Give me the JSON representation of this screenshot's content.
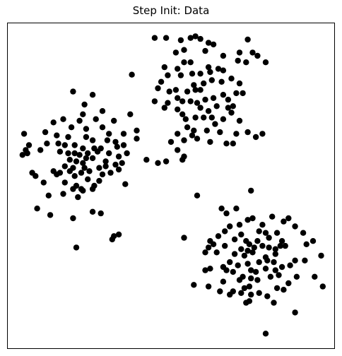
{
  "chart_data": {
    "type": "scatter",
    "title": "Step Init: Data",
    "xlabel": "",
    "ylabel": "",
    "xlim": [
      0,
      100
    ],
    "ylim": [
      0,
      100
    ],
    "grid": false,
    "legend": "none",
    "point_color": "#000000",
    "series": [
      {
        "points": [
          [
            45.0,
            95.5
          ],
          [
            48.5,
            95.5
          ],
          [
            53.0,
            94.8
          ],
          [
            56.0,
            95.5
          ],
          [
            57.5,
            96.0
          ],
          [
            59.0,
            95.2
          ],
          [
            61.5,
            94.0
          ],
          [
            63.0,
            93.5
          ],
          [
            73.5,
            95.0
          ],
          [
            51.5,
            91.0
          ],
          [
            54.0,
            91.8
          ],
          [
            60.5,
            91.5
          ],
          [
            66.0,
            90.0
          ],
          [
            71.0,
            91.0
          ],
          [
            75.0,
            91.0
          ],
          [
            76.5,
            90.0
          ],
          [
            79.0,
            88.0
          ],
          [
            54.0,
            88.0
          ],
          [
            56.0,
            88.0
          ],
          [
            52.0,
            86.0
          ],
          [
            48.0,
            86.5
          ],
          [
            61.5,
            86.5
          ],
          [
            70.5,
            88.5
          ],
          [
            73.0,
            88.0
          ],
          [
            38.0,
            84.2
          ],
          [
            49.0,
            84.0
          ],
          [
            53.0,
            84.0
          ],
          [
            56.5,
            84.5
          ],
          [
            59.0,
            84.5
          ],
          [
            62.0,
            85.0
          ],
          [
            64.5,
            86.0
          ],
          [
            66.0,
            85.5
          ],
          [
            60.0,
            81.5
          ],
          [
            47.0,
            82.0
          ],
          [
            57.0,
            81.0
          ],
          [
            62.5,
            82.5
          ],
          [
            65.5,
            82.0
          ],
          [
            68.5,
            83.0
          ],
          [
            71.0,
            81.5
          ],
          [
            46.0,
            80.0
          ],
          [
            49.5,
            79.0
          ],
          [
            51.5,
            79.5
          ],
          [
            55.0,
            79.0
          ],
          [
            57.5,
            79.5
          ],
          [
            59.0,
            79.5
          ],
          [
            45.0,
            76.0
          ],
          [
            49.0,
            75.5
          ],
          [
            52.0,
            77.0
          ],
          [
            53.5,
            76.0
          ],
          [
            56.0,
            76.0
          ],
          [
            58.0,
            75.5
          ],
          [
            60.5,
            76.5
          ],
          [
            63.0,
            77.0
          ],
          [
            66.0,
            78.0
          ],
          [
            67.5,
            76.5
          ],
          [
            70.0,
            78.5
          ],
          [
            72.0,
            78.5
          ],
          [
            48.0,
            74.0
          ],
          [
            52.0,
            73.5
          ],
          [
            53.5,
            72.0
          ],
          [
            59.0,
            74.0
          ],
          [
            61.5,
            73.0
          ],
          [
            64.0,
            74.5
          ],
          [
            67.5,
            74.0
          ],
          [
            69.0,
            74.5
          ],
          [
            54.5,
            70.5
          ],
          [
            57.5,
            71.0
          ],
          [
            60.0,
            71.0
          ],
          [
            62.5,
            71.0
          ],
          [
            66.0,
            70.5
          ],
          [
            68.5,
            72.5
          ],
          [
            71.0,
            70.0
          ],
          [
            55.0,
            68.0
          ],
          [
            57.0,
            67.0
          ],
          [
            63.5,
            69.0
          ],
          [
            65.0,
            66.5
          ],
          [
            52.0,
            66.0
          ],
          [
            56.5,
            65.5
          ],
          [
            61.0,
            67.0
          ],
          [
            70.0,
            66.0
          ],
          [
            78.0,
            66.0
          ],
          [
            73.5,
            66.5
          ],
          [
            50.0,
            63.5
          ],
          [
            54.0,
            64.0
          ],
          [
            58.0,
            64.5
          ],
          [
            62.0,
            63.5
          ],
          [
            69.0,
            63.0
          ],
          [
            76.0,
            65.0
          ],
          [
            52.0,
            61.0
          ],
          [
            54.0,
            59.0
          ],
          [
            67.0,
            63.0
          ],
          [
            46.0,
            57.0
          ],
          [
            53.5,
            58.0
          ]
        ]
      },
      {
        "points": [
          [
            20.0,
            79.0
          ],
          [
            26.0,
            78.0
          ],
          [
            23.5,
            75.0
          ],
          [
            23.0,
            72.0
          ],
          [
            29.0,
            73.0
          ],
          [
            37.5,
            72.0
          ],
          [
            17.0,
            70.5
          ],
          [
            22.0,
            70.0
          ],
          [
            27.0,
            70.5
          ],
          [
            32.5,
            70.0
          ],
          [
            31.0,
            66.0
          ],
          [
            14.0,
            69.5
          ],
          [
            19.5,
            68.0
          ],
          [
            24.0,
            67.5
          ],
          [
            29.0,
            68.0
          ],
          [
            35.5,
            66.0
          ],
          [
            39.5,
            67.0
          ],
          [
            5.0,
            66.0
          ],
          [
            11.5,
            66.5
          ],
          [
            15.0,
            65.5
          ],
          [
            18.5,
            65.0
          ],
          [
            24.0,
            65.0
          ],
          [
            26.0,
            64.0
          ],
          [
            30.5,
            64.0
          ],
          [
            33.0,
            63.5
          ],
          [
            39.5,
            64.5
          ],
          [
            6.5,
            62.5
          ],
          [
            12.0,
            63.0
          ],
          [
            15.5,
            63.0
          ],
          [
            17.5,
            62.5
          ],
          [
            20.5,
            62.5
          ],
          [
            23.0,
            61.5
          ],
          [
            26.5,
            61.5
          ],
          [
            28.5,
            61.5
          ],
          [
            33.5,
            62.0
          ],
          [
            35.5,
            62.5
          ],
          [
            5.5,
            61.0
          ],
          [
            10.0,
            61.0
          ],
          [
            16.0,
            60.5
          ],
          [
            18.5,
            60.0
          ],
          [
            20.5,
            60.0
          ],
          [
            22.0,
            59.5
          ],
          [
            24.5,
            60.0
          ],
          [
            26.0,
            58.5
          ],
          [
            27.5,
            60.5
          ],
          [
            31.0,
            60.0
          ],
          [
            34.0,
            59.0
          ],
          [
            36.5,
            60.0
          ],
          [
            19.0,
            58.0
          ],
          [
            21.0,
            57.5
          ],
          [
            23.0,
            57.0
          ],
          [
            24.0,
            58.5
          ],
          [
            30.0,
            57.5
          ],
          [
            33.0,
            56.5
          ],
          [
            35.0,
            57.0
          ],
          [
            42.5,
            58.0
          ],
          [
            48.5,
            57.5
          ],
          [
            4.5,
            59.5
          ],
          [
            6.0,
            60.0
          ],
          [
            17.5,
            56.0
          ],
          [
            20.0,
            55.5
          ],
          [
            23.5,
            55.5
          ],
          [
            28.0,
            55.5
          ],
          [
            30.0,
            56.0
          ],
          [
            7.5,
            54.0
          ],
          [
            14.0,
            54.5
          ],
          [
            16.0,
            54.0
          ],
          [
            19.0,
            54.5
          ],
          [
            22.5,
            54.0
          ],
          [
            25.0,
            54.5
          ],
          [
            29.0,
            53.5
          ],
          [
            31.5,
            54.0
          ],
          [
            34.0,
            55.0
          ],
          [
            8.5,
            53.0
          ],
          [
            15.0,
            53.5
          ],
          [
            20.5,
            53.0
          ],
          [
            24.5,
            52.0
          ],
          [
            11.0,
            51.0
          ],
          [
            17.5,
            51.0
          ],
          [
            21.0,
            50.0
          ],
          [
            22.5,
            49.0
          ],
          [
            26.5,
            50.0
          ],
          [
            28.0,
            51.5
          ],
          [
            36.0,
            50.5
          ],
          [
            20.0,
            49.0
          ],
          [
            23.0,
            48.5
          ],
          [
            26.0,
            49.0
          ],
          [
            12.5,
            47.0
          ],
          [
            17.0,
            47.5
          ],
          [
            21.5,
            46.5
          ],
          [
            9.0,
            43.0
          ],
          [
            26.0,
            42.0
          ],
          [
            28.5,
            41.5
          ],
          [
            13.0,
            41.0
          ],
          [
            20.0,
            40.0
          ],
          [
            32.5,
            34.5
          ],
          [
            34.0,
            35.0
          ],
          [
            32.0,
            33.5
          ],
          [
            21.0,
            31.0
          ]
        ]
      },
      {
        "points": [
          [
            58.0,
            47.0
          ],
          [
            74.5,
            48.5
          ],
          [
            65.5,
            43.0
          ],
          [
            67.0,
            41.5
          ],
          [
            70.0,
            43.0
          ],
          [
            71.0,
            38.0
          ],
          [
            73.5,
            39.5
          ],
          [
            75.0,
            40.0
          ],
          [
            78.0,
            38.0
          ],
          [
            81.0,
            40.5
          ],
          [
            84.5,
            39.0
          ],
          [
            86.0,
            40.0
          ],
          [
            66.5,
            36.0
          ],
          [
            68.0,
            37.5
          ],
          [
            77.0,
            36.0
          ],
          [
            79.0,
            35.5
          ],
          [
            82.5,
            35.5
          ],
          [
            88.0,
            37.5
          ],
          [
            90.5,
            35.5
          ],
          [
            54.0,
            34.0
          ],
          [
            62.0,
            33.0
          ],
          [
            64.5,
            34.5
          ],
          [
            69.5,
            33.5
          ],
          [
            71.5,
            35.0
          ],
          [
            73.0,
            33.0
          ],
          [
            74.0,
            32.0
          ],
          [
            76.5,
            33.0
          ],
          [
            80.0,
            34.0
          ],
          [
            84.0,
            33.0
          ],
          [
            91.5,
            32.0
          ],
          [
            93.5,
            33.0
          ],
          [
            61.5,
            31.0
          ],
          [
            63.0,
            32.0
          ],
          [
            66.5,
            31.5
          ],
          [
            71.5,
            30.5
          ],
          [
            73.5,
            30.0
          ],
          [
            75.5,
            31.0
          ],
          [
            78.0,
            31.5
          ],
          [
            80.0,
            31.0
          ],
          [
            82.0,
            30.5
          ],
          [
            83.5,
            31.5
          ],
          [
            85.0,
            31.5
          ],
          [
            60.5,
            29.5
          ],
          [
            64.0,
            29.5
          ],
          [
            69.5,
            29.0
          ],
          [
            72.5,
            28.5
          ],
          [
            75.0,
            29.5
          ],
          [
            79.0,
            28.0
          ],
          [
            82.0,
            29.0
          ],
          [
            96.0,
            28.5
          ],
          [
            68.0,
            26.5
          ],
          [
            73.5,
            26.0
          ],
          [
            77.0,
            26.5
          ],
          [
            79.5,
            27.0
          ],
          [
            81.5,
            26.5
          ],
          [
            88.0,
            27.0
          ],
          [
            91.0,
            27.0
          ],
          [
            66.0,
            25.0
          ],
          [
            70.5,
            25.5
          ],
          [
            74.5,
            24.0
          ],
          [
            79.0,
            24.5
          ],
          [
            82.0,
            24.0
          ],
          [
            84.0,
            25.0
          ],
          [
            86.5,
            25.5
          ],
          [
            60.5,
            24.0
          ],
          [
            62.0,
            24.5
          ],
          [
            67.0,
            24.0
          ],
          [
            69.0,
            23.5
          ],
          [
            76.0,
            23.5
          ],
          [
            72.0,
            22.0
          ],
          [
            74.5,
            21.5
          ],
          [
            80.5,
            22.0
          ],
          [
            83.0,
            22.5
          ],
          [
            88.5,
            22.0
          ],
          [
            94.0,
            22.0
          ],
          [
            66.0,
            20.5
          ],
          [
            71.0,
            21.0
          ],
          [
            76.5,
            21.0
          ],
          [
            86.0,
            20.0
          ],
          [
            72.5,
            18.5
          ],
          [
            74.0,
            19.0
          ],
          [
            57.0,
            19.5
          ],
          [
            61.5,
            19.0
          ],
          [
            82.5,
            18.5
          ],
          [
            69.0,
            17.5
          ],
          [
            71.5,
            17.0
          ],
          [
            74.5,
            16.5
          ],
          [
            77.0,
            17.0
          ],
          [
            79.5,
            16.0
          ],
          [
            84.5,
            18.0
          ],
          [
            65.0,
            17.5
          ],
          [
            68.0,
            16.5
          ],
          [
            73.0,
            14.0
          ],
          [
            74.0,
            14.5
          ],
          [
            81.5,
            14.0
          ],
          [
            88.0,
            11.0
          ],
          [
            96.5,
            19.0
          ],
          [
            79.0,
            4.5
          ]
        ]
      }
    ]
  }
}
